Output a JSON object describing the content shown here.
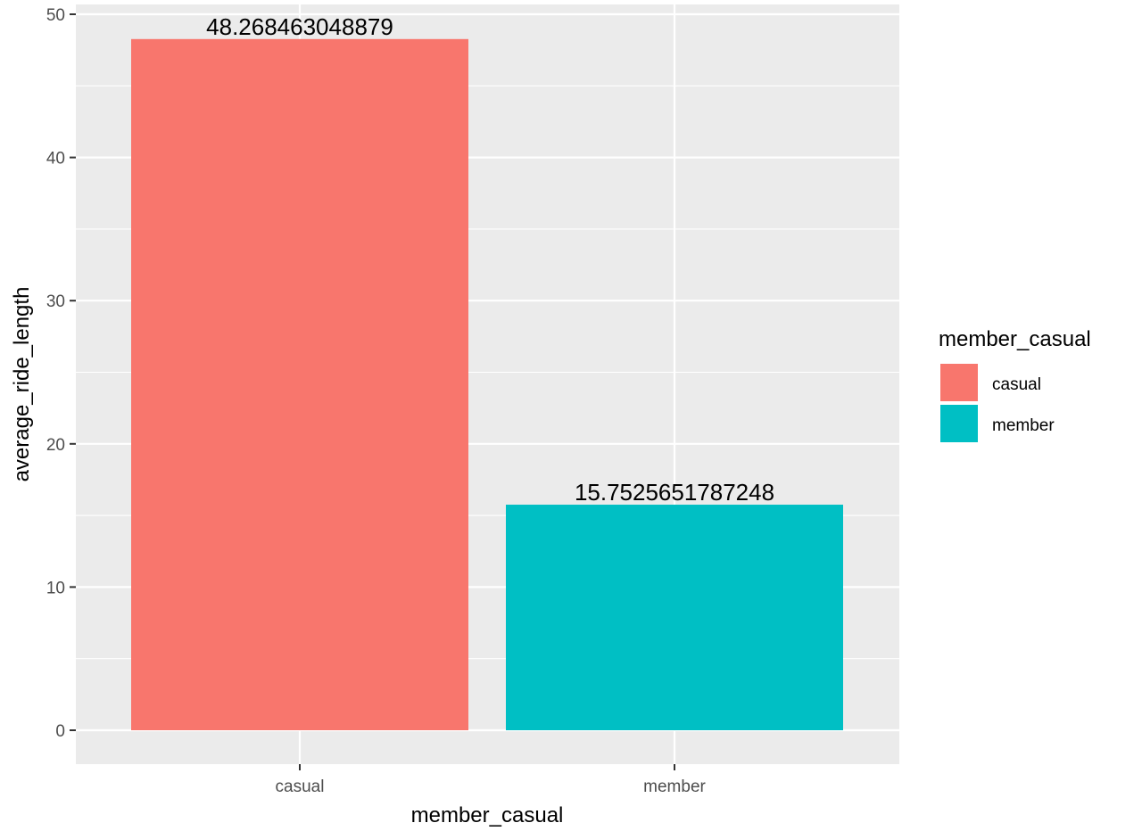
{
  "chart_data": {
    "type": "bar",
    "categories": [
      "casual",
      "member"
    ],
    "values": [
      48.268463048879,
      15.7525651787248
    ],
    "data_labels": [
      "48.268463048879",
      "15.7525651787248"
    ],
    "colors": [
      "#F8766D",
      "#00BFC4"
    ],
    "xlabel": "member_casual",
    "ylabel": "average_ride_length",
    "ylim": [
      0,
      50
    ],
    "yticks": [
      0,
      10,
      20,
      30,
      40,
      50
    ],
    "grid": true,
    "panel_background": "#EBEBEB",
    "legend": {
      "title": "member_casual",
      "position": "right",
      "entries": [
        "casual",
        "member"
      ]
    }
  }
}
